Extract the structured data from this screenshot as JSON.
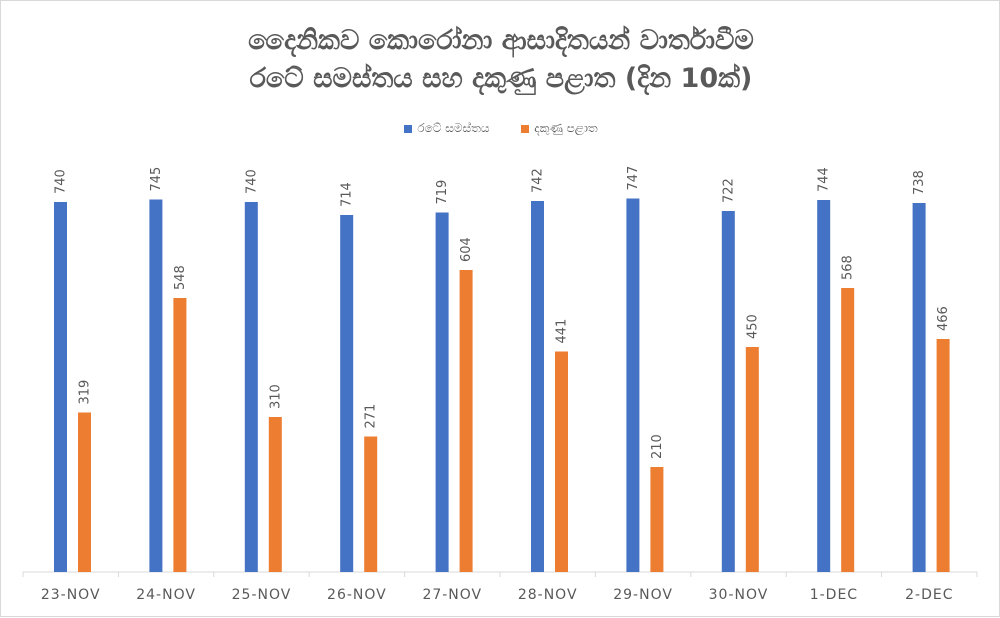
{
  "chart_data": {
    "type": "bar",
    "title": [
      "දෛනිකව කොරෝනා ආසාදිතයන් වාර්තාවීම",
      "රටේ සමස්තය සහ දකුණු පළාත (දින 10ක්)"
    ],
    "categories": [
      "23-NOV",
      "24-NOV",
      "25-NOV",
      "26-NOV",
      "27-NOV",
      "28-NOV",
      "29-NOV",
      "30-NOV",
      "1-DEC",
      "2-DEC"
    ],
    "series": [
      {
        "name": "රටේ සමස්තය",
        "color": "#4472c4",
        "values": [
          740,
          745,
          740,
          714,
          719,
          742,
          747,
          722,
          744,
          738
        ]
      },
      {
        "name": "දකුණු පළාත",
        "color": "#ed7d31",
        "values": [
          319,
          548,
          310,
          271,
          604,
          441,
          210,
          450,
          568,
          466
        ]
      }
    ],
    "ylim": [
      0,
      800
    ],
    "grid": false,
    "legend": "top",
    "data_labels": true
  }
}
